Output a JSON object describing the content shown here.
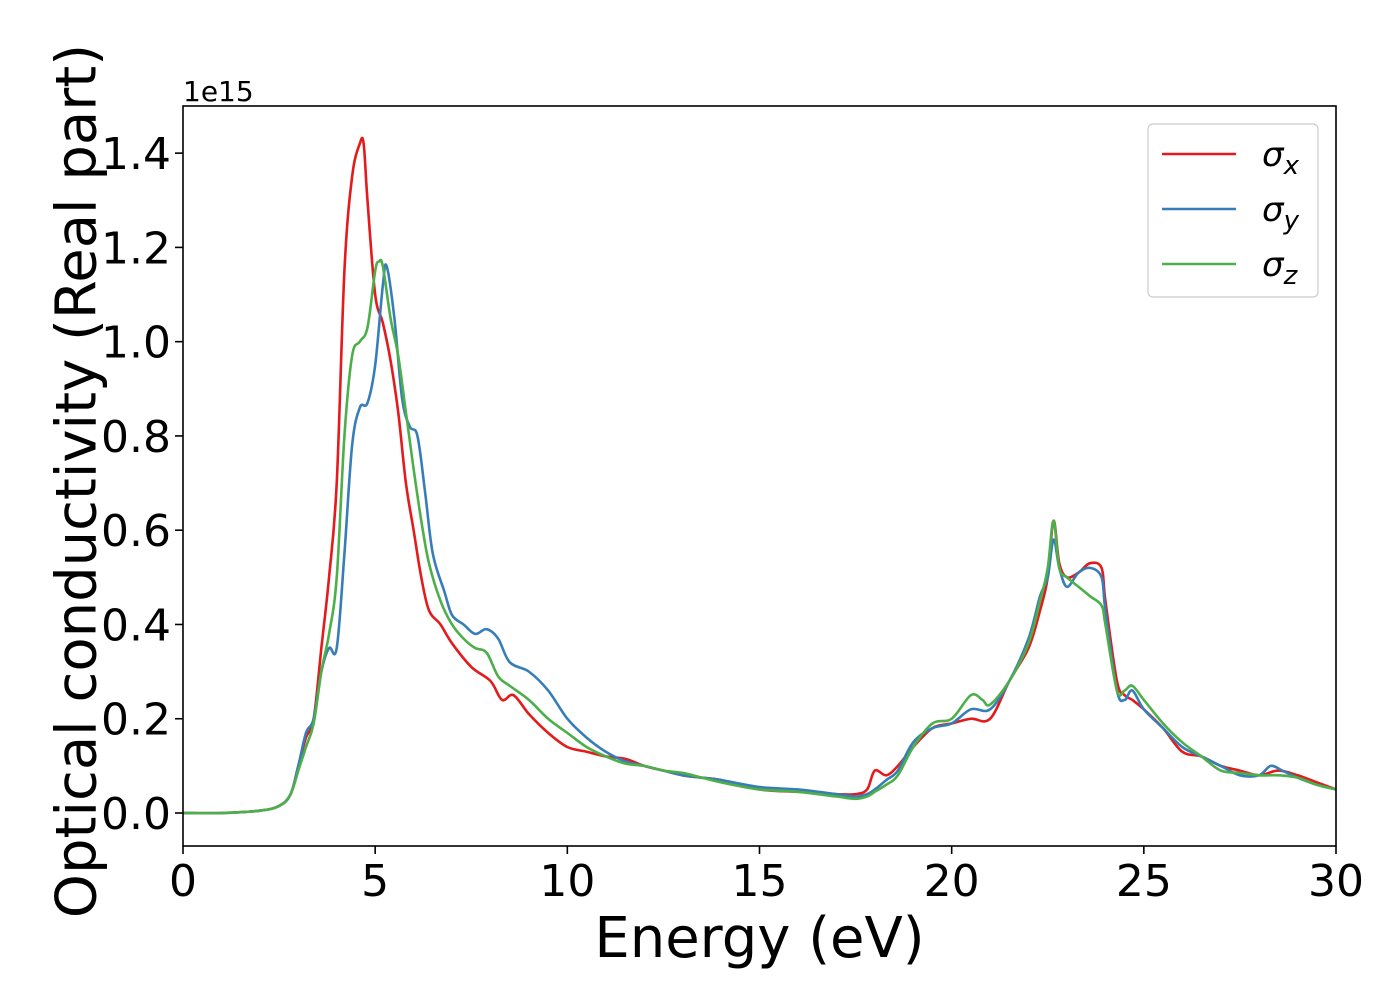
{
  "chart_data": {
    "type": "line",
    "title": "",
    "xlabel": "Energy (eV)",
    "ylabel": "Optical conductivity (Real part)",
    "y_offset_label": "1e15",
    "y_scale": 1000000000000000.0,
    "xlim": [
      0,
      30
    ],
    "ylim": [
      -0.07,
      1.5
    ],
    "x_ticks": [
      0,
      5,
      10,
      15,
      20,
      25,
      30
    ],
    "x_tick_labels": [
      "0",
      "5",
      "10",
      "15",
      "20",
      "25",
      "30"
    ],
    "y_ticks": [
      0.0,
      0.2,
      0.4,
      0.6,
      0.8,
      1.0,
      1.2,
      1.4
    ],
    "y_tick_labels": [
      "0.0",
      "0.2",
      "0.4",
      "0.6",
      "0.8",
      "1.0",
      "1.2",
      "1.4"
    ],
    "grid": false,
    "legend_position": "top-right",
    "series": [
      {
        "name": "σx",
        "base": "σ",
        "sub": "x",
        "color": "#e41a1c",
        "x": [
          0,
          1,
          2,
          2.5,
          2.8,
          3.0,
          3.2,
          3.4,
          3.6,
          3.8,
          4.0,
          4.2,
          4.4,
          4.6,
          4.7,
          4.8,
          5.0,
          5.2,
          5.4,
          5.6,
          5.8,
          6.0,
          6.2,
          6.4,
          6.7,
          7.0,
          7.5,
          8.0,
          8.3,
          8.6,
          9.0,
          9.5,
          10.0,
          10.5,
          11.0,
          11.5,
          12.0,
          12.5,
          13.0,
          13.5,
          14.0,
          15.0,
          16.0,
          17.0,
          17.5,
          17.8,
          18.0,
          18.3,
          18.6,
          19.0,
          19.5,
          20.0,
          20.5,
          21.0,
          21.5,
          22.0,
          22.3,
          22.5,
          22.65,
          22.8,
          23.0,
          23.3,
          23.6,
          23.9,
          24.0,
          24.3,
          24.5,
          24.7,
          25.0,
          25.5,
          26.0,
          26.5,
          27.0,
          27.5,
          28.0,
          28.5,
          29.0,
          29.5,
          30.0
        ],
        "y": [
          0.0,
          0.0,
          0.005,
          0.015,
          0.04,
          0.1,
          0.16,
          0.2,
          0.35,
          0.5,
          0.7,
          1.15,
          1.35,
          1.42,
          1.42,
          1.3,
          1.1,
          1.04,
          0.96,
          0.85,
          0.7,
          0.6,
          0.5,
          0.43,
          0.4,
          0.36,
          0.31,
          0.28,
          0.24,
          0.25,
          0.21,
          0.17,
          0.14,
          0.13,
          0.12,
          0.115,
          0.1,
          0.09,
          0.08,
          0.075,
          0.07,
          0.05,
          0.045,
          0.04,
          0.04,
          0.05,
          0.09,
          0.08,
          0.1,
          0.14,
          0.18,
          0.19,
          0.2,
          0.2,
          0.28,
          0.35,
          0.43,
          0.5,
          0.62,
          0.53,
          0.5,
          0.51,
          0.53,
          0.52,
          0.45,
          0.28,
          0.25,
          0.24,
          0.22,
          0.18,
          0.13,
          0.12,
          0.1,
          0.09,
          0.08,
          0.09,
          0.08,
          0.065,
          0.05
        ]
      },
      {
        "name": "σy",
        "base": "σ",
        "sub": "y",
        "color": "#377eb8",
        "x": [
          0,
          1,
          2,
          2.5,
          2.8,
          3.0,
          3.2,
          3.4,
          3.6,
          3.8,
          4.0,
          4.2,
          4.4,
          4.6,
          4.8,
          5.0,
          5.2,
          5.3,
          5.5,
          5.7,
          5.9,
          6.1,
          6.3,
          6.5,
          6.8,
          7.0,
          7.3,
          7.6,
          7.9,
          8.2,
          8.5,
          9.0,
          9.5,
          10.0,
          10.5,
          11.0,
          11.5,
          12.0,
          12.5,
          13.0,
          13.5,
          14.0,
          15.0,
          16.0,
          17.0,
          17.5,
          17.8,
          18.0,
          18.3,
          18.6,
          19.0,
          19.5,
          20.0,
          20.5,
          21.0,
          21.5,
          22.0,
          22.3,
          22.5,
          22.65,
          22.8,
          23.0,
          23.3,
          23.6,
          23.9,
          24.0,
          24.3,
          24.5,
          24.7,
          25.0,
          25.5,
          26.0,
          26.5,
          27.0,
          27.5,
          28.0,
          28.3,
          28.6,
          29.0,
          29.5,
          30.0
        ],
        "y": [
          0.0,
          0.0,
          0.005,
          0.015,
          0.04,
          0.1,
          0.17,
          0.2,
          0.3,
          0.35,
          0.35,
          0.55,
          0.78,
          0.86,
          0.87,
          0.95,
          1.12,
          1.16,
          1.05,
          0.88,
          0.82,
          0.8,
          0.68,
          0.55,
          0.47,
          0.42,
          0.4,
          0.38,
          0.39,
          0.37,
          0.32,
          0.3,
          0.26,
          0.2,
          0.16,
          0.13,
          0.11,
          0.1,
          0.09,
          0.08,
          0.075,
          0.07,
          0.055,
          0.05,
          0.04,
          0.035,
          0.04,
          0.05,
          0.07,
          0.09,
          0.15,
          0.18,
          0.19,
          0.22,
          0.22,
          0.28,
          0.37,
          0.46,
          0.5,
          0.58,
          0.52,
          0.48,
          0.51,
          0.52,
          0.5,
          0.43,
          0.26,
          0.24,
          0.26,
          0.22,
          0.18,
          0.14,
          0.12,
          0.1,
          0.08,
          0.08,
          0.1,
          0.09,
          0.075,
          0.06,
          0.05
        ]
      },
      {
        "name": "σz",
        "base": "σ",
        "sub": "z",
        "color": "#4daf4a",
        "x": [
          0,
          1,
          2,
          2.5,
          2.8,
          3.0,
          3.2,
          3.4,
          3.6,
          3.8,
          4.0,
          4.2,
          4.4,
          4.6,
          4.8,
          5.0,
          5.1,
          5.2,
          5.4,
          5.6,
          5.8,
          6.0,
          6.2,
          6.4,
          6.7,
          7.0,
          7.3,
          7.6,
          7.9,
          8.2,
          8.5,
          9.0,
          9.5,
          10.0,
          10.5,
          11.0,
          11.5,
          12.0,
          12.5,
          13.0,
          13.5,
          14.0,
          15.0,
          16.0,
          17.0,
          17.5,
          17.8,
          18.0,
          18.3,
          18.6,
          19.0,
          19.5,
          20.0,
          20.5,
          20.8,
          21.0,
          21.5,
          22.0,
          22.3,
          22.5,
          22.65,
          22.8,
          23.0,
          23.3,
          23.6,
          23.9,
          24.0,
          24.3,
          24.5,
          24.7,
          25.0,
          25.5,
          26.0,
          26.5,
          27.0,
          27.5,
          28.0,
          28.5,
          29.0,
          29.5,
          30.0
        ],
        "y": [
          0.0,
          0.0,
          0.005,
          0.015,
          0.04,
          0.09,
          0.14,
          0.19,
          0.3,
          0.38,
          0.5,
          0.8,
          0.97,
          1.0,
          1.03,
          1.15,
          1.17,
          1.16,
          1.05,
          0.97,
          0.85,
          0.73,
          0.62,
          0.53,
          0.45,
          0.4,
          0.37,
          0.35,
          0.34,
          0.29,
          0.27,
          0.24,
          0.2,
          0.17,
          0.14,
          0.12,
          0.105,
          0.1,
          0.09,
          0.085,
          0.075,
          0.065,
          0.05,
          0.045,
          0.035,
          0.03,
          0.035,
          0.045,
          0.06,
          0.08,
          0.14,
          0.19,
          0.2,
          0.25,
          0.24,
          0.23,
          0.28,
          0.36,
          0.45,
          0.52,
          0.62,
          0.52,
          0.5,
          0.48,
          0.46,
          0.44,
          0.4,
          0.26,
          0.26,
          0.27,
          0.24,
          0.19,
          0.15,
          0.12,
          0.09,
          0.085,
          0.08,
          0.08,
          0.075,
          0.06,
          0.05
        ]
      }
    ]
  }
}
